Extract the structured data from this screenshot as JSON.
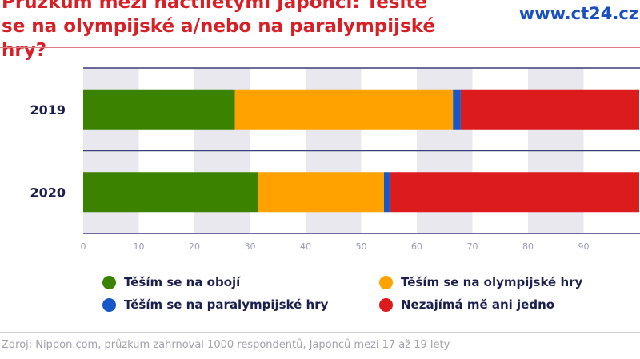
{
  "header": {
    "title": "Průzkum mezi náctiletými Japonci: Těšíte se na olympijské a/nebo na paralympijské hry?",
    "brand": "www.ct24.cz"
  },
  "chart_data": {
    "type": "bar",
    "orientation": "horizontal",
    "stacked": true,
    "categories": [
      "2019",
      "2020"
    ],
    "xlim": [
      0,
      100
    ],
    "xticks": [
      0,
      10,
      20,
      30,
      40,
      50,
      60,
      70,
      80,
      90
    ],
    "grid": "alternating bands",
    "legend_position": "bottom",
    "series": [
      {
        "name": "Těším se na obojí",
        "color": "#3a8200",
        "values": [
          27.3,
          31.5
        ]
      },
      {
        "name": "Těším se na olympijské hry",
        "color": "#ffa200",
        "values": [
          39.2,
          22.6
        ]
      },
      {
        "name": "Těším se na paralympijské hry",
        "color": "#1757c9",
        "values": [
          1.4,
          1.0
        ]
      },
      {
        "name": "Nezajímá mě ani jedno",
        "color": "#dc1b1d",
        "values": [
          32.1,
          44.9
        ]
      }
    ]
  },
  "footer": {
    "source": "Zdroj: Nippon.com, průzkum zahrnoval 1000 respondentů, Japonců mezi 17 až 19 lety"
  }
}
